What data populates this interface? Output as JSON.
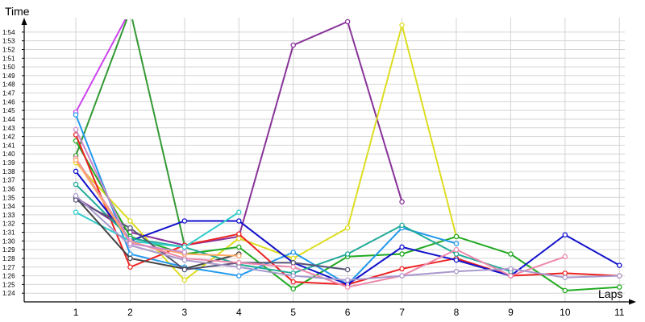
{
  "chart_data": {
    "type": "line",
    "ylabel": "Time",
    "xlabel": "Laps",
    "x": [
      1,
      2,
      3,
      4,
      5,
      6,
      7,
      8,
      9,
      10,
      11
    ],
    "xlim": [
      0.05,
      11.1
    ],
    "ylim": [
      83.0,
      116.3
    ],
    "grid": true,
    "y_ticks": [
      {
        "value": 84,
        "label": "1:24"
      },
      {
        "value": 85,
        "label": "1:25"
      },
      {
        "value": 86,
        "label": "1:26"
      },
      {
        "value": 87,
        "label": "1:27"
      },
      {
        "value": 88,
        "label": "1:28"
      },
      {
        "value": 89,
        "label": "1:29"
      },
      {
        "value": 90,
        "label": "1:30"
      },
      {
        "value": 91,
        "label": "1:31"
      },
      {
        "value": 92,
        "label": "1:32"
      },
      {
        "value": 93,
        "label": "1:33"
      },
      {
        "value": 94,
        "label": "1:34"
      },
      {
        "value": 95,
        "label": "1:35"
      },
      {
        "value": 96,
        "label": "1:36"
      },
      {
        "value": 97,
        "label": "1:37"
      },
      {
        "value": 98,
        "label": "1:38"
      },
      {
        "value": 99,
        "label": "1:39"
      },
      {
        "value": 100,
        "label": "1:40"
      },
      {
        "value": 101,
        "label": "1:41"
      },
      {
        "value": 102,
        "label": "1:42"
      },
      {
        "value": 103,
        "label": "1:43"
      },
      {
        "value": 104,
        "label": "1:44"
      },
      {
        "value": 105,
        "label": "1:45"
      },
      {
        "value": 106,
        "label": "1:46"
      },
      {
        "value": 107,
        "label": "1:47"
      },
      {
        "value": 108,
        "label": "1:48"
      },
      {
        "value": 109,
        "label": "1:49"
      },
      {
        "value": 110,
        "label": "1:50"
      },
      {
        "value": 111,
        "label": "1:51"
      },
      {
        "value": 112,
        "label": "1:52"
      },
      {
        "value": 113,
        "label": "1:53"
      },
      {
        "value": 114,
        "label": "1:54"
      }
    ],
    "x_ticks": [
      {
        "value": 1,
        "label": "1"
      },
      {
        "value": 2,
        "label": "2"
      },
      {
        "value": 3,
        "label": "3"
      },
      {
        "value": 4,
        "label": "4"
      },
      {
        "value": 5,
        "label": "5"
      },
      {
        "value": 6,
        "label": "6"
      },
      {
        "value": 7,
        "label": "7"
      },
      {
        "value": 8,
        "label": "8"
      },
      {
        "value": 9,
        "label": "9"
      },
      {
        "value": 10,
        "label": "10"
      },
      {
        "value": 11,
        "label": "11"
      }
    ],
    "series": [
      {
        "color": "#cc44ee",
        "values": [
          104.8,
          116.5,
          null,
          null,
          null,
          null,
          null,
          null,
          null,
          null,
          null
        ]
      },
      {
        "color": "#339933",
        "values": [
          99.8,
          116.5,
          89.5,
          null,
          null,
          null,
          null,
          null,
          null,
          null,
          null
        ]
      },
      {
        "color": "#883399",
        "values": [
          95.0,
          91.0,
          89.5,
          90.5,
          112.5,
          115.2,
          94.5,
          null,
          null,
          null,
          null
        ]
      },
      {
        "color": "#dddd22",
        "values": [
          99.0,
          92.3,
          85.5,
          90.3,
          88.0,
          91.5,
          114.8,
          90.5,
          null,
          null,
          null
        ]
      },
      {
        "color": "#22aa22",
        "values": [
          101.5,
          90.5,
          88.5,
          89.3,
          84.5,
          88.2,
          88.5,
          90.5,
          88.5,
          84.3,
          84.7
        ]
      },
      {
        "color": "#2299ee",
        "values": [
          104.5,
          88.5,
          87.0,
          86.0,
          88.7,
          85.0,
          91.5,
          89.7,
          null,
          null,
          null
        ]
      },
      {
        "color": "#ee2222",
        "values": [
          102.2,
          87.0,
          89.5,
          90.8,
          85.3,
          85.0,
          86.8,
          88.0,
          86.0,
          86.3,
          86.0
        ]
      },
      {
        "color": "#1111cc",
        "values": [
          98.0,
          90.0,
          92.3,
          92.3,
          87.5,
          85.0,
          89.3,
          87.8,
          86.0,
          90.7,
          87.2
        ]
      },
      {
        "color": "#22aa99",
        "values": [
          96.5,
          90.3,
          89.3,
          87.3,
          86.3,
          88.5,
          91.8,
          88.5,
          86.5,
          null,
          null
        ]
      },
      {
        "color": "#33cccc",
        "values": [
          93.3,
          90.0,
          89.3,
          93.3,
          null,
          null,
          null,
          null,
          null,
          null,
          null
        ]
      },
      {
        "color": "#444444",
        "values": [
          95.0,
          88.0,
          86.8,
          88.5,
          null,
          null,
          null,
          null,
          null,
          null,
          null
        ]
      },
      {
        "color": "#555577",
        "values": [
          94.7,
          91.5,
          86.7,
          87.5,
          87.5,
          86.7,
          null,
          null,
          null,
          null,
          null
        ]
      },
      {
        "color": "#ee88aa",
        "values": [
          99.5,
          90.0,
          88.0,
          87.5,
          87.0,
          84.7,
          86.0,
          89.0,
          86.0,
          88.2,
          null
        ]
      },
      {
        "color": "#aa99cc",
        "values": [
          95.2,
          89.5,
          87.8,
          87.0,
          86.0,
          85.5,
          86.0,
          86.5,
          86.8,
          85.8,
          86.0
        ]
      },
      {
        "color": "#ffaa66",
        "values": [
          99.3,
          89.8,
          88.5,
          88.3,
          null,
          null,
          null,
          null,
          null,
          null,
          null
        ]
      },
      {
        "color": "#cc88cc",
        "values": [
          102.8,
          89.7,
          88.7,
          null,
          null,
          null,
          null,
          null,
          null,
          null,
          null
        ]
      }
    ]
  }
}
